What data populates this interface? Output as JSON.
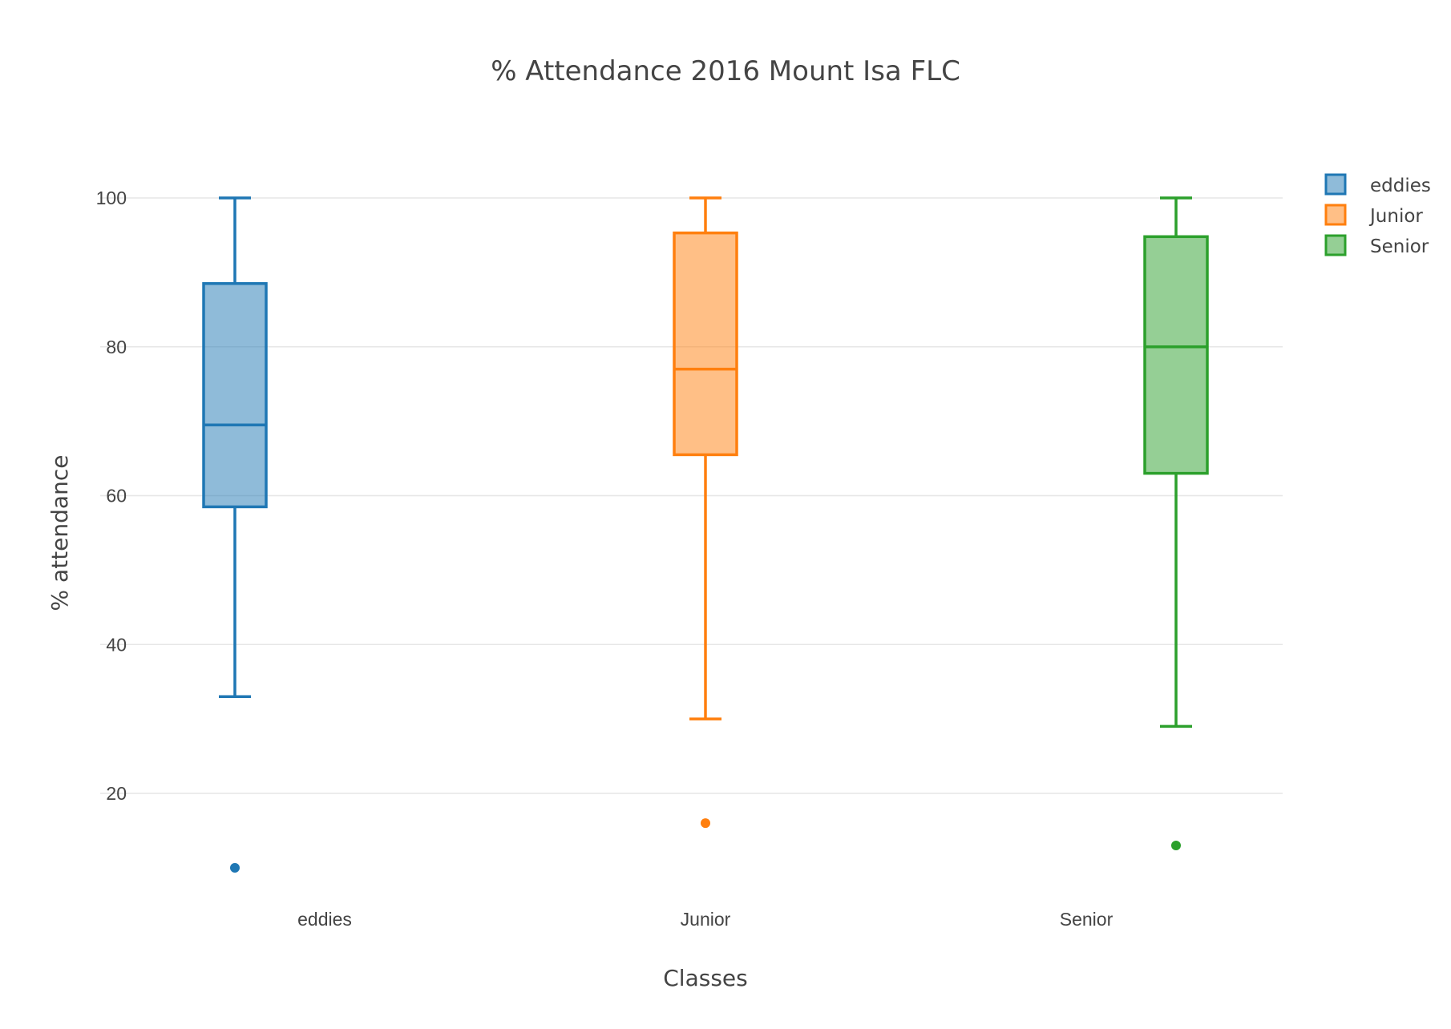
{
  "chart_data": {
    "type": "box",
    "title": "% Attendance 2016 Mount Isa FLC",
    "xlabel": "Classes",
    "ylabel": "% attendance",
    "ylim": [
      5,
      110
    ],
    "yticks": [
      20,
      40,
      60,
      80,
      100
    ],
    "categories": [
      "eddies",
      "Junior",
      "Senior"
    ],
    "grid": true,
    "legend_position": "top-right",
    "series": [
      {
        "name": "eddies",
        "color": "#1f77b4",
        "fill": "rgba(31,119,180,0.5)",
        "min": 33,
        "q1": 58.5,
        "median": 69.5,
        "q3": 88.5,
        "max": 100,
        "outliers": [
          10
        ]
      },
      {
        "name": "Junior",
        "color": "#ff7f0e",
        "fill": "rgba(255,127,14,0.5)",
        "min": 30,
        "q1": 65.5,
        "median": 77,
        "q3": 95.3,
        "max": 100,
        "outliers": [
          16
        ]
      },
      {
        "name": "Senior",
        "color": "#2ca02c",
        "fill": "rgba(44,160,44,0.5)",
        "min": 29,
        "q1": 63,
        "median": 80,
        "q3": 94.8,
        "max": 100,
        "outliers": [
          13
        ]
      }
    ]
  }
}
